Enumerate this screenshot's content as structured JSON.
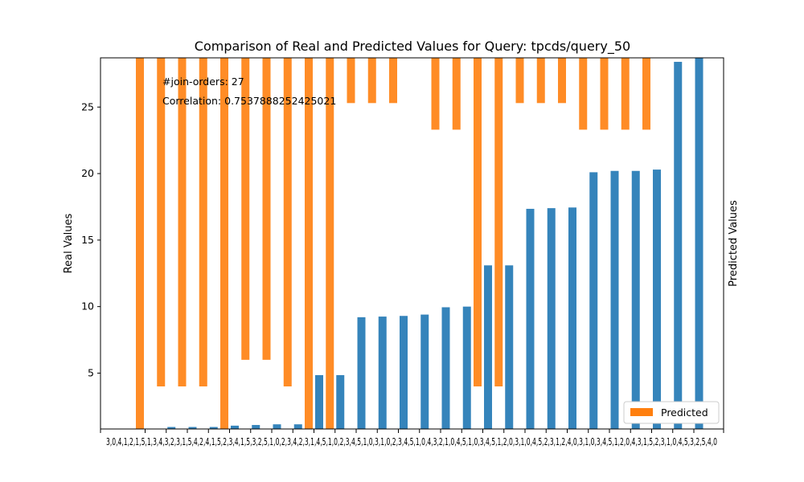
{
  "chart_data": {
    "type": "bar",
    "title": "Comparison of Real and Predicted Values for Query: tpcds/query_50",
    "ylabel_left": "Real Values",
    "ylabel_right": "Predicted Values",
    "x_tick_labels_text": "3,0,4,1,2,1,5,1,3,4,3,2,3,1,5,4,2,4,1,5,2,3,4,1,5,3,2,5,1,0,2,3,4,2,3,1,4,5,1,0,2,3,4,5,1,0,3,1,0,2,3,4,5,1,0,4,3,2,1,0,4,5,1,0,3,4,5,1,2,0,3,1,0,4,5,2,3,1,2,4,0,3,1,0,3,4,5,1,2,0,4,3,1,5,2,3,1,0,4,5,3,2,5,4,0",
    "yticks_left": [
      5,
      10,
      15,
      20,
      25
    ],
    "ylim_left": [
      0.8,
      28.7
    ],
    "annotations": [
      "#join-orders: 27",
      "Correlation: 0.7537888252425021"
    ],
    "legend": {
      "label": "Predicted",
      "placement": "lower-right",
      "color": "#ff7f0e"
    },
    "colors": {
      "real": "#1f77b4",
      "predicted": "#ff7f0e"
    },
    "series": [
      {
        "values": [
          0.8,
          0.95,
          0.95,
          0.95,
          1.05,
          1.1,
          1.15,
          1.15,
          4.85,
          4.85,
          9.2,
          9.25,
          9.3,
          9.4,
          9.95,
          10.0,
          13.1,
          13.1,
          17.35,
          17.4,
          17.45,
          20.1,
          20.2,
          20.2,
          20.3,
          28.4,
          28.7
        ]
      },
      {
        "name": "Predicted",
        "values": [
          0.8,
          4.0,
          4.0,
          4.0,
          0.8,
          6.0,
          6.0,
          4.0,
          0.8,
          0.8,
          25.3,
          25.3,
          25.3,
          28.7,
          23.3,
          23.3,
          4.0,
          4.0,
          25.3,
          25.3,
          25.3,
          23.3,
          23.3,
          23.3,
          23.3,
          28.7,
          28.7
        ]
      }
    ]
  }
}
